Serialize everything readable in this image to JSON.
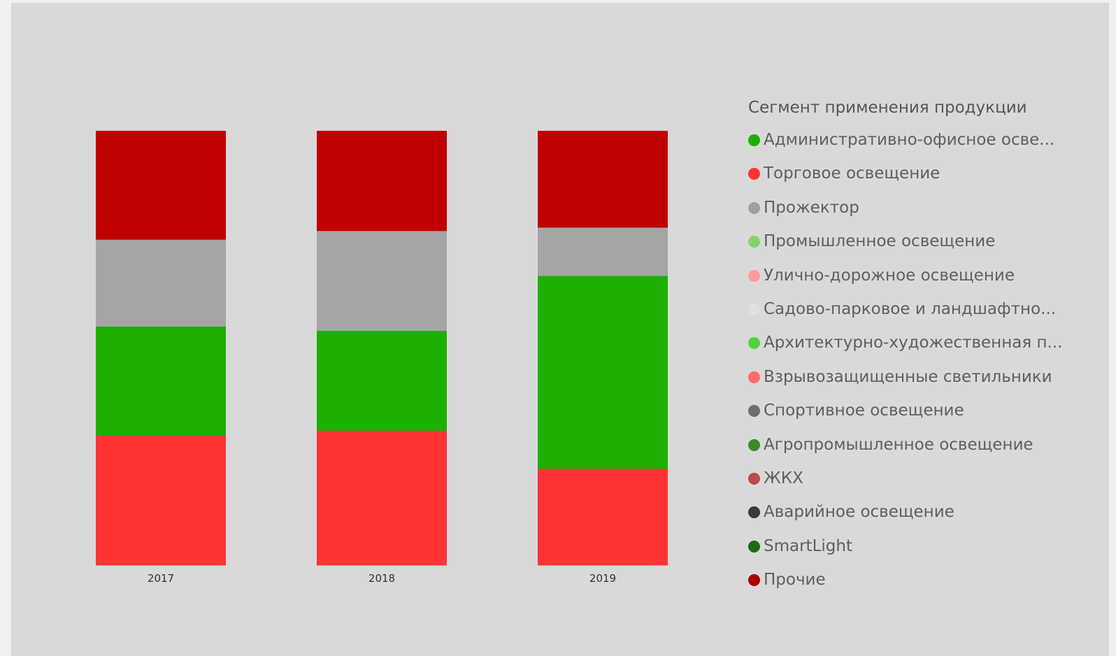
{
  "chart_data": {
    "type": "bar",
    "stacked": true,
    "normalized": true,
    "categories": [
      "2017",
      "2018",
      "2019"
    ],
    "series": [
      {
        "name": "Торговое освещение",
        "color": "#ff3333",
        "values": [
          30,
          31,
          22
        ]
      },
      {
        "name": "Административно-офисное осве...",
        "color": "#1db000",
        "values": [
          25,
          23,
          44
        ]
      },
      {
        "name": "Прожектор",
        "color": "#a5a5a5",
        "values": [
          20,
          23,
          11
        ]
      },
      {
        "name": "Прочие",
        "color": "#c00000",
        "values": [
          25,
          23,
          22
        ]
      }
    ],
    "ylim": [
      0,
      100
    ],
    "legend": {
      "title": "Сегмент применения продукции",
      "position": "right",
      "items": [
        {
          "label": "Административно-офисное осве...",
          "color": "#1db000"
        },
        {
          "label": "Торговое освещение",
          "color": "#ff3333"
        },
        {
          "label": "Прожектор",
          "color": "#a0a0a0"
        },
        {
          "label": "Промышленное освещение",
          "color": "#7fd66b"
        },
        {
          "label": "Улично-дорожное освещение",
          "color": "#ff9a9a"
        },
        {
          "label": "Садово-парковое и ландшафтно...",
          "color": "#e0e0e0"
        },
        {
          "label": "Архитектурно-художественная п...",
          "color": "#55d040"
        },
        {
          "label": "Взрывозащищенные светильники",
          "color": "#ff6b6b"
        },
        {
          "label": "Спортивное освещение",
          "color": "#6e6e6e"
        },
        {
          "label": "Агропромышленное освещение",
          "color": "#3a8a2a"
        },
        {
          "label": "ЖКХ",
          "color": "#c04848"
        },
        {
          "label": "Аварийное освещение",
          "color": "#3a3a3a"
        },
        {
          "label": "SmartLight",
          "color": "#1a6b12"
        },
        {
          "label": "Прочие",
          "color": "#b00000"
        }
      ]
    }
  }
}
